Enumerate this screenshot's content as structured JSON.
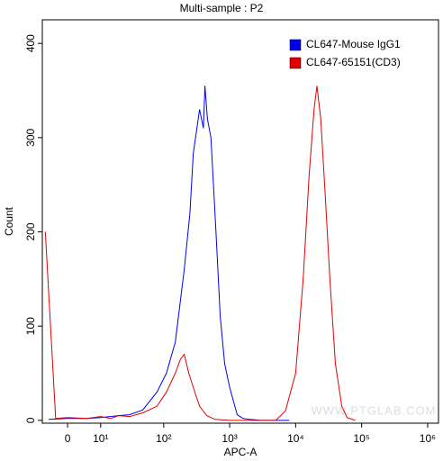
{
  "chart_data": {
    "type": "line",
    "title": "Multi-sample : P2",
    "xlabel": "APC-A",
    "ylabel": "Count",
    "xscale": "biexponential",
    "xlim": [
      -7,
      1460000
    ],
    "ylim": [
      -3,
      425
    ],
    "xticks": [
      0,
      {
        "value": 10,
        "label": "10¹"
      },
      {
        "value": 100,
        "label": "10²"
      },
      {
        "value": 1000,
        "label": "10³"
      },
      {
        "value": 10000,
        "label": "10⁴"
      },
      {
        "value": 100000,
        "label": "10⁵"
      },
      {
        "value": 1000000,
        "label": "10⁶"
      }
    ],
    "yticks": [
      0,
      100,
      200,
      300,
      400
    ],
    "legend": "top-right",
    "annotation": "WWW.PTGLAB.COM",
    "series": [
      {
        "name": "CL647-Mouse IgG1",
        "color": "#0000ee",
        "x": [
          -5,
          0,
          5,
          10,
          20,
          30,
          48,
          79,
          110,
          150,
          205,
          250,
          281,
          350,
          400,
          422,
          460,
          520,
          615,
          720,
          840,
          1000,
          1300,
          1600,
          2000,
          3000,
          8000
        ],
        "values": [
          1,
          2,
          2,
          3,
          5,
          6,
          11,
          30,
          50,
          83,
          160,
          220,
          283,
          330,
          310,
          355,
          320,
          300,
          205,
          110,
          60,
          35,
          6,
          2,
          1,
          0,
          0
        ]
      },
      {
        "name": "CL647-65151(CD3)",
        "color": "#e00000",
        "x": [
          -6,
          -3,
          0,
          5,
          10,
          15,
          20,
          30,
          48,
          79,
          110,
          150,
          180,
          205,
          240,
          281,
          350,
          450,
          600,
          1000,
          5000,
          7000,
          10000,
          13000,
          16000,
          19000,
          21000,
          24000,
          28000,
          33000,
          40000,
          50000,
          60000,
          80000
        ],
        "values": [
          200,
          2,
          3,
          2,
          4,
          2,
          5,
          4,
          8,
          15,
          30,
          50,
          65,
          70,
          50,
          35,
          15,
          5,
          1,
          0,
          0,
          10,
          50,
          150,
          260,
          330,
          355,
          320,
          240,
          150,
          60,
          15,
          3,
          0
        ]
      }
    ]
  }
}
